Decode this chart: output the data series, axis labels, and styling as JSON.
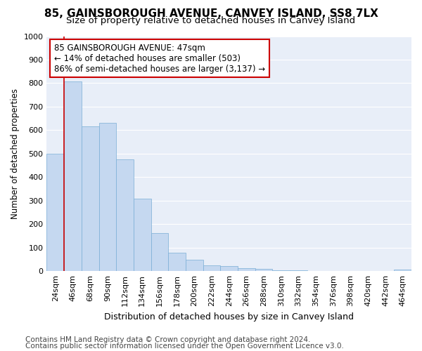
{
  "title": "85, GAINSBOROUGH AVENUE, CANVEY ISLAND, SS8 7LX",
  "subtitle": "Size of property relative to detached houses in Canvey Island",
  "xlabel": "Distribution of detached houses by size in Canvey Island",
  "ylabel": "Number of detached properties",
  "categories": [
    "24sqm",
    "46sqm",
    "68sqm",
    "90sqm",
    "112sqm",
    "134sqm",
    "156sqm",
    "178sqm",
    "200sqm",
    "222sqm",
    "244sqm",
    "266sqm",
    "288sqm",
    "310sqm",
    "332sqm",
    "354sqm",
    "376sqm",
    "398sqm",
    "420sqm",
    "442sqm",
    "464sqm"
  ],
  "values": [
    500,
    808,
    615,
    632,
    475,
    308,
    163,
    78,
    47,
    23,
    20,
    12,
    10,
    5,
    4,
    2,
    2,
    1,
    0,
    0,
    8
  ],
  "bar_color": "#c5d8f0",
  "bar_edgecolor": "#7aaed6",
  "vline_color": "#cc0000",
  "vline_x_index": 1,
  "annotation_text": "85 GAINSBOROUGH AVENUE: 47sqm\n← 14% of detached houses are smaller (503)\n86% of semi-detached houses are larger (3,137) →",
  "annotation_box_edgecolor": "#cc0000",
  "annotation_box_facecolor": "#ffffff",
  "ylim": [
    0,
    1000
  ],
  "yticks": [
    0,
    100,
    200,
    300,
    400,
    500,
    600,
    700,
    800,
    900,
    1000
  ],
  "background_color": "#ffffff",
  "plot_bg_color": "#e8eef8",
  "grid_color": "#ffffff",
  "title_fontsize": 11,
  "subtitle_fontsize": 9.5,
  "xlabel_fontsize": 9,
  "ylabel_fontsize": 8.5,
  "tick_fontsize": 8,
  "annotation_fontsize": 8.5,
  "footer_fontsize": 7.5
}
